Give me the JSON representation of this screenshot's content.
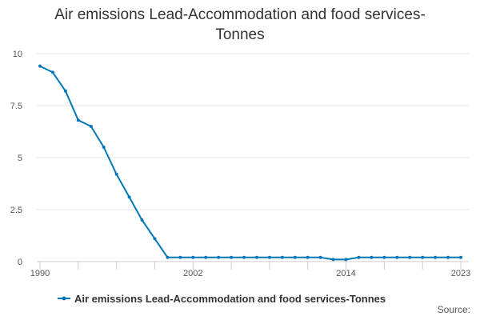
{
  "chart_data": {
    "type": "line",
    "title_line1": "Air emissions Lead-Accommodation and food services-",
    "title_line2": "Tonnes",
    "x": [
      1990,
      1991,
      1992,
      1993,
      1994,
      1995,
      1996,
      1997,
      1998,
      1999,
      2000,
      2001,
      2002,
      2003,
      2004,
      2005,
      2006,
      2007,
      2008,
      2009,
      2010,
      2011,
      2012,
      2013,
      2014,
      2015,
      2016,
      2017,
      2018,
      2019,
      2020,
      2021,
      2022,
      2023
    ],
    "series": [
      {
        "name": "Air emissions Lead-Accommodation and food services-Tonnes",
        "color": "#0077b6",
        "values": [
          9.4,
          9.1,
          8.2,
          6.8,
          6.5,
          5.5,
          4.2,
          3.1,
          2.0,
          1.1,
          0.2,
          0.2,
          0.2,
          0.2,
          0.2,
          0.2,
          0.2,
          0.2,
          0.2,
          0.2,
          0.2,
          0.2,
          0.2,
          0.1,
          0.1,
          0.2,
          0.2,
          0.2,
          0.2,
          0.2,
          0.2,
          0.2,
          0.2,
          0.2
        ]
      }
    ],
    "xlim": [
      1990,
      2023
    ],
    "ylim": [
      0,
      10
    ],
    "y_ticks": [
      0,
      2.5,
      5,
      7.5,
      10
    ],
    "y_tick_labels": [
      "0",
      "2.5",
      "5",
      "7.5",
      "10"
    ],
    "x_tick_labels": [
      "1990",
      "2002",
      "2014",
      "2023"
    ],
    "x_tick_values": [
      1990,
      2002,
      2014,
      2023
    ],
    "grid": true,
    "legend_position": "bottom",
    "source_label": "Source:"
  }
}
